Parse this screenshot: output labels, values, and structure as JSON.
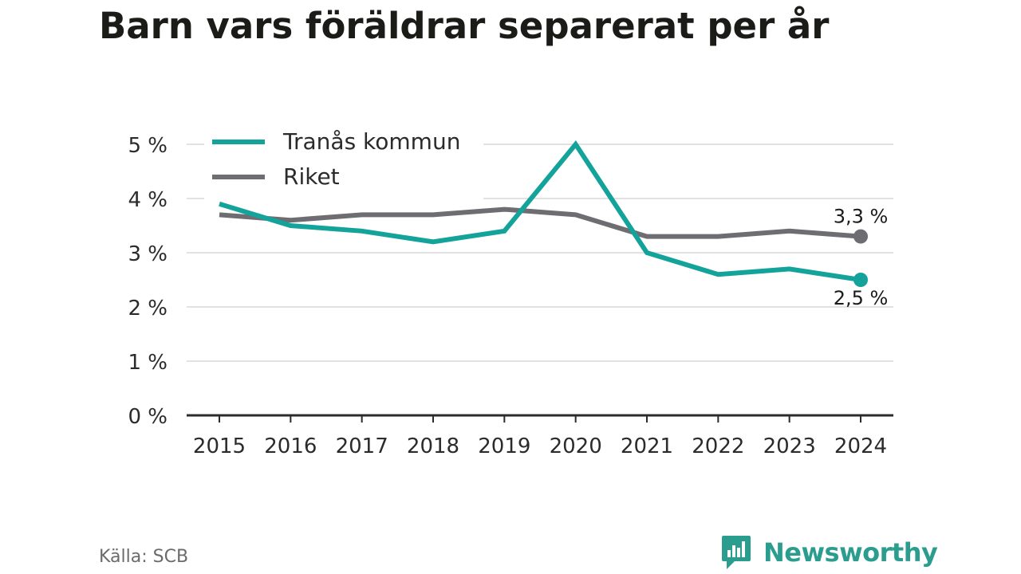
{
  "header": {
    "title": "Barn vars föräldrar separerat per år"
  },
  "footer": {
    "source": "Källa: SCB",
    "brand": "Newsworthy"
  },
  "colors": {
    "tranas": "#14a39a",
    "riket": "#6e6d72",
    "grid": "#e2e2e2",
    "axis": "#2b2b2b"
  },
  "chart_data": {
    "type": "line",
    "title": "Barn vars föräldrar separerat per år",
    "x": [
      "2015",
      "2016",
      "2017",
      "2018",
      "2019",
      "2020",
      "2021",
      "2022",
      "2023",
      "2024"
    ],
    "y_ticks": [
      "0 %",
      "1 %",
      "2 %",
      "3 %",
      "4 %",
      "5 %"
    ],
    "ylim": [
      0,
      5
    ],
    "grid": true,
    "legend_position": "top-left",
    "series": [
      {
        "name": "Tranås kommun",
        "values": [
          3.9,
          3.5,
          3.4,
          3.2,
          3.4,
          5.0,
          3.0,
          2.6,
          2.7,
          2.5
        ],
        "end_label": "2,5 %"
      },
      {
        "name": "Riket",
        "values": [
          3.7,
          3.6,
          3.7,
          3.7,
          3.8,
          3.7,
          3.3,
          3.3,
          3.4,
          3.3
        ],
        "end_label": "3,3 %"
      }
    ]
  }
}
